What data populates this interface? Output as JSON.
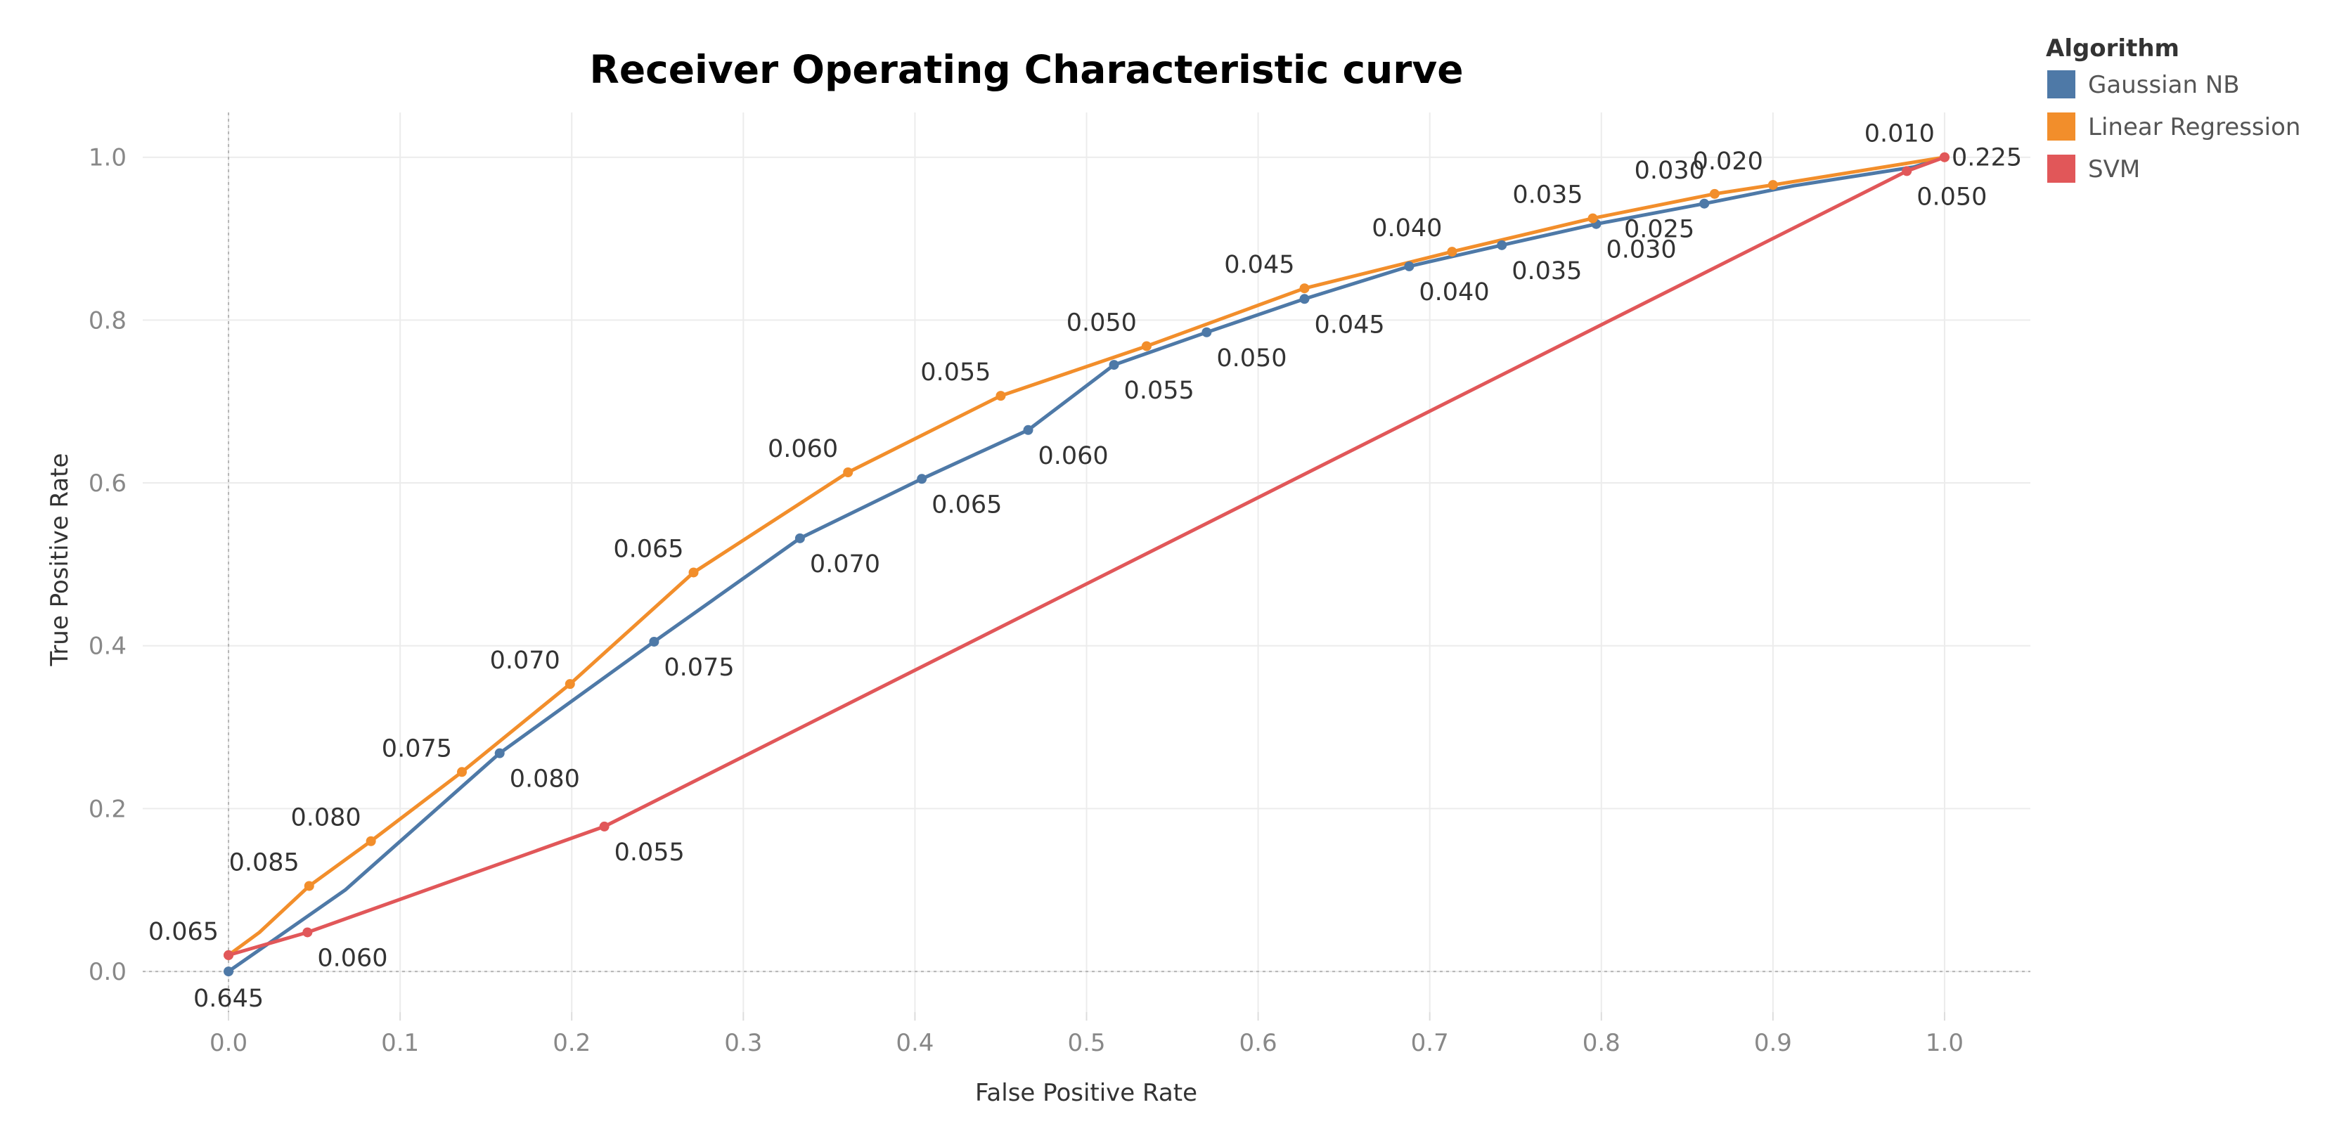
{
  "chart_data": {
    "type": "line",
    "title": "Receiver Operating Characteristic curve",
    "xlabel": "False Positive Rate",
    "ylabel": "True Positive Rate",
    "xlim": [
      -0.05,
      1.05
    ],
    "ylim": [
      -0.05,
      1.055
    ],
    "xticks": [
      "0.0",
      "0.1",
      "0.2",
      "0.3",
      "0.4",
      "0.5",
      "0.6",
      "0.7",
      "0.8",
      "0.9",
      "1.0"
    ],
    "yticks": [
      "0.0",
      "0.2",
      "0.4",
      "0.6",
      "0.8",
      "1.0"
    ],
    "grid": true,
    "legend_title": "Algorithm",
    "legend_position": "top-right",
    "series": [
      {
        "name": "Gaussian NB",
        "color": "#4e79a7",
        "points": [
          {
            "x": 0.0,
            "y": 0.0,
            "label": "0.645",
            "pos": "below"
          },
          {
            "x": 0.068,
            "y": 0.1,
            "label": "",
            "pos": "none"
          },
          {
            "x": 0.158,
            "y": 0.268,
            "label": "0.080",
            "pos": "below-right"
          },
          {
            "x": 0.248,
            "y": 0.405,
            "label": "0.075",
            "pos": "below-right"
          },
          {
            "x": 0.333,
            "y": 0.532,
            "label": "0.070",
            "pos": "below-right"
          },
          {
            "x": 0.404,
            "y": 0.605,
            "label": "0.065",
            "pos": "below-right"
          },
          {
            "x": 0.466,
            "y": 0.665,
            "label": "0.060",
            "pos": "below-right"
          },
          {
            "x": 0.516,
            "y": 0.745,
            "label": "0.055",
            "pos": "below-right"
          },
          {
            "x": 0.57,
            "y": 0.785,
            "label": "0.050",
            "pos": "below-right"
          },
          {
            "x": 0.627,
            "y": 0.826,
            "label": "0.045",
            "pos": "below-right"
          },
          {
            "x": 0.688,
            "y": 0.866,
            "label": "0.040",
            "pos": "below-right"
          },
          {
            "x": 0.742,
            "y": 0.892,
            "label": "0.035",
            "pos": "below-right"
          },
          {
            "x": 0.797,
            "y": 0.918,
            "label": "0.030",
            "pos": "below-right"
          },
          {
            "x": 0.86,
            "y": 0.943,
            "label": "0.025",
            "pos": "below-left"
          },
          {
            "x": 0.912,
            "y": 0.965,
            "label": "",
            "pos": "none"
          },
          {
            "x": 0.982,
            "y": 0.988,
            "label": "",
            "pos": "none"
          },
          {
            "x": 1.0,
            "y": 1.0,
            "label": "",
            "pos": "none"
          }
        ]
      },
      {
        "name": "Linear Regression",
        "color": "#f28e2b",
        "points": [
          {
            "x": 0.0,
            "y": 0.02,
            "label": "",
            "pos": "none"
          },
          {
            "x": 0.018,
            "y": 0.048,
            "label": "",
            "pos": "none"
          },
          {
            "x": 0.047,
            "y": 0.105,
            "label": "0.085",
            "pos": "above-left"
          },
          {
            "x": 0.083,
            "y": 0.16,
            "label": "0.080",
            "pos": "above-left"
          },
          {
            "x": 0.136,
            "y": 0.245,
            "label": "0.075",
            "pos": "above-left"
          },
          {
            "x": 0.199,
            "y": 0.353,
            "label": "0.070",
            "pos": "above-left"
          },
          {
            "x": 0.271,
            "y": 0.49,
            "label": "0.065",
            "pos": "above-left"
          },
          {
            "x": 0.361,
            "y": 0.613,
            "label": "0.060",
            "pos": "above-left"
          },
          {
            "x": 0.45,
            "y": 0.707,
            "label": "0.055",
            "pos": "above-left"
          },
          {
            "x": 0.535,
            "y": 0.768,
            "label": "0.050",
            "pos": "above-left"
          },
          {
            "x": 0.627,
            "y": 0.839,
            "label": "0.045",
            "pos": "above-left"
          },
          {
            "x": 0.713,
            "y": 0.884,
            "label": "0.040",
            "pos": "above-left"
          },
          {
            "x": 0.795,
            "y": 0.925,
            "label": "0.035",
            "pos": "above-left"
          },
          {
            "x": 0.866,
            "y": 0.955,
            "label": "0.030",
            "pos": "above-left"
          },
          {
            "x": 0.9,
            "y": 0.966,
            "label": "0.020",
            "pos": "above-left"
          },
          {
            "x": 1.0,
            "y": 1.0,
            "label": "0.010",
            "pos": "above-left"
          }
        ]
      },
      {
        "name": "SVM",
        "color": "#e15759",
        "points": [
          {
            "x": 0.0,
            "y": 0.02,
            "label": "0.065",
            "pos": "above-left"
          },
          {
            "x": 0.046,
            "y": 0.048,
            "label": "0.060",
            "pos": "below-right"
          },
          {
            "x": 0.219,
            "y": 0.178,
            "label": "0.055",
            "pos": "below-right"
          },
          {
            "x": 0.978,
            "y": 0.983,
            "label": "0.050",
            "pos": "below-right"
          },
          {
            "x": 1.0,
            "y": 1.0,
            "label": "0.225",
            "pos": "right"
          }
        ]
      }
    ]
  }
}
